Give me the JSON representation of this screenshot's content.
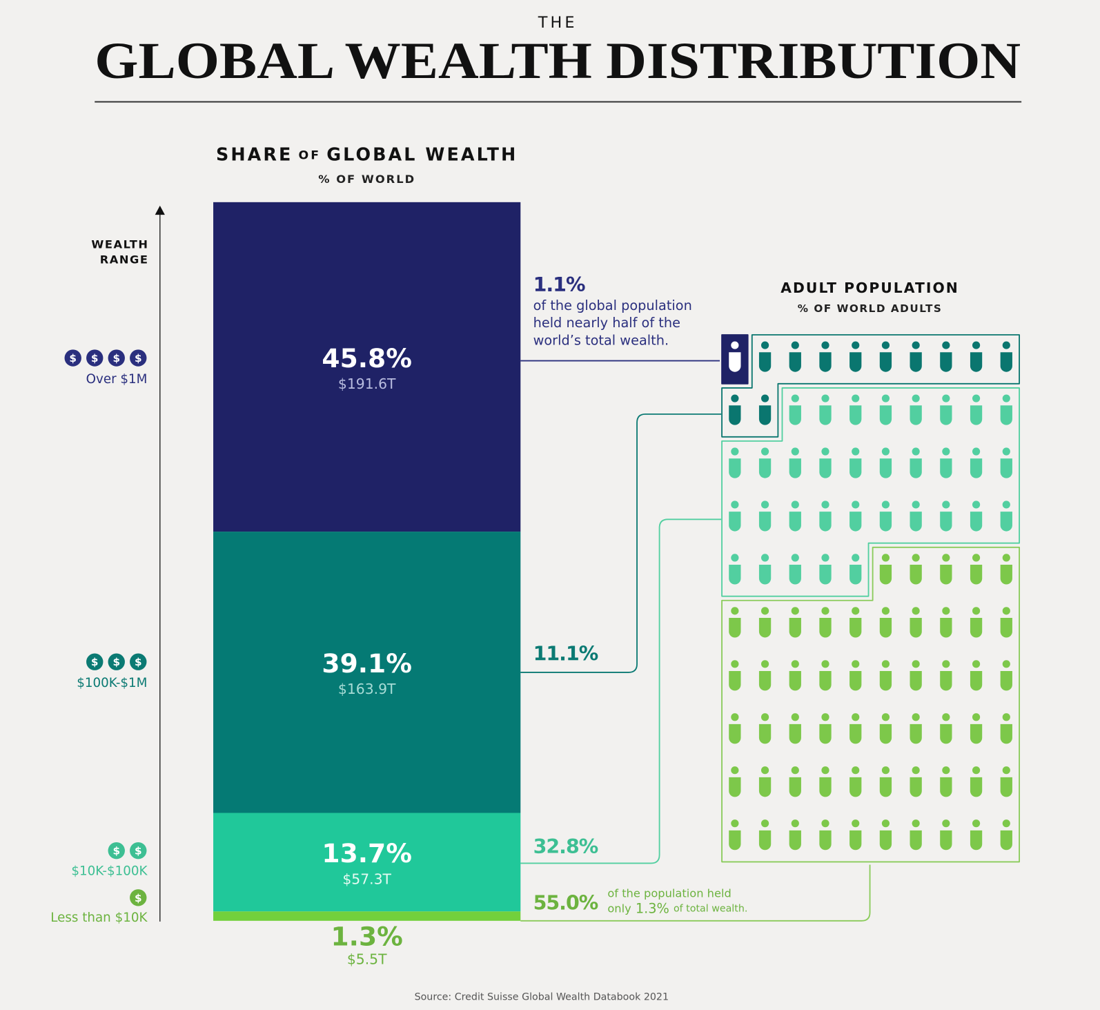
{
  "chart_data": {
    "type": "bar",
    "supertitle": "THE",
    "title": "GLOBAL WEALTH DISTRIBUTION",
    "wealth_heading": [
      "SHARE",
      "OF",
      "GLOBAL WEALTH"
    ],
    "wealth_unit": "% OF WORLD",
    "axis_label": [
      "WEALTH",
      "RANGE"
    ],
    "categories": [
      "Over $1M",
      "$100K-$1M",
      "$10K-$100K",
      "Less than $10K"
    ],
    "currency_symbol": "$",
    "tier_icons": [
      4,
      3,
      2,
      1
    ],
    "ylim": [
      0,
      100
    ],
    "colors": [
      "#1f2266",
      "#057a74",
      "#20c89a",
      "#72d03c"
    ],
    "values": [
      45.8,
      39.1,
      13.7,
      1.3
    ],
    "value_labels": [
      "45.8%",
      "39.1%",
      "13.7%",
      "1.3%"
    ],
    "amounts": [
      191.6,
      163.9,
      57.3,
      5.5
    ],
    "amount_labels": [
      "$191.6T",
      "$163.9T",
      "$57.3T",
      "$5.5T"
    ],
    "population_heading": "ADULT POPULATION",
    "population_unit": "% OF WORLD ADULTS",
    "population": [
      1.1,
      11.1,
      32.8,
      55.0
    ],
    "population_labels": [
      "1.1%",
      "11.1%",
      "32.8%",
      "55.0%"
    ],
    "population_colors": [
      "#1f2266",
      "#0a766f",
      "#52cfa0",
      "#7dc84a"
    ],
    "annotation_1": [
      "of the global population",
      "held nearly half of the",
      "world’s total wealth."
    ],
    "annotation_2": [
      "of the population held",
      "only",
      "1.3%",
      "of total wealth."
    ],
    "source": "Source: Credit Suisse Global Wealth Databook 2021"
  }
}
